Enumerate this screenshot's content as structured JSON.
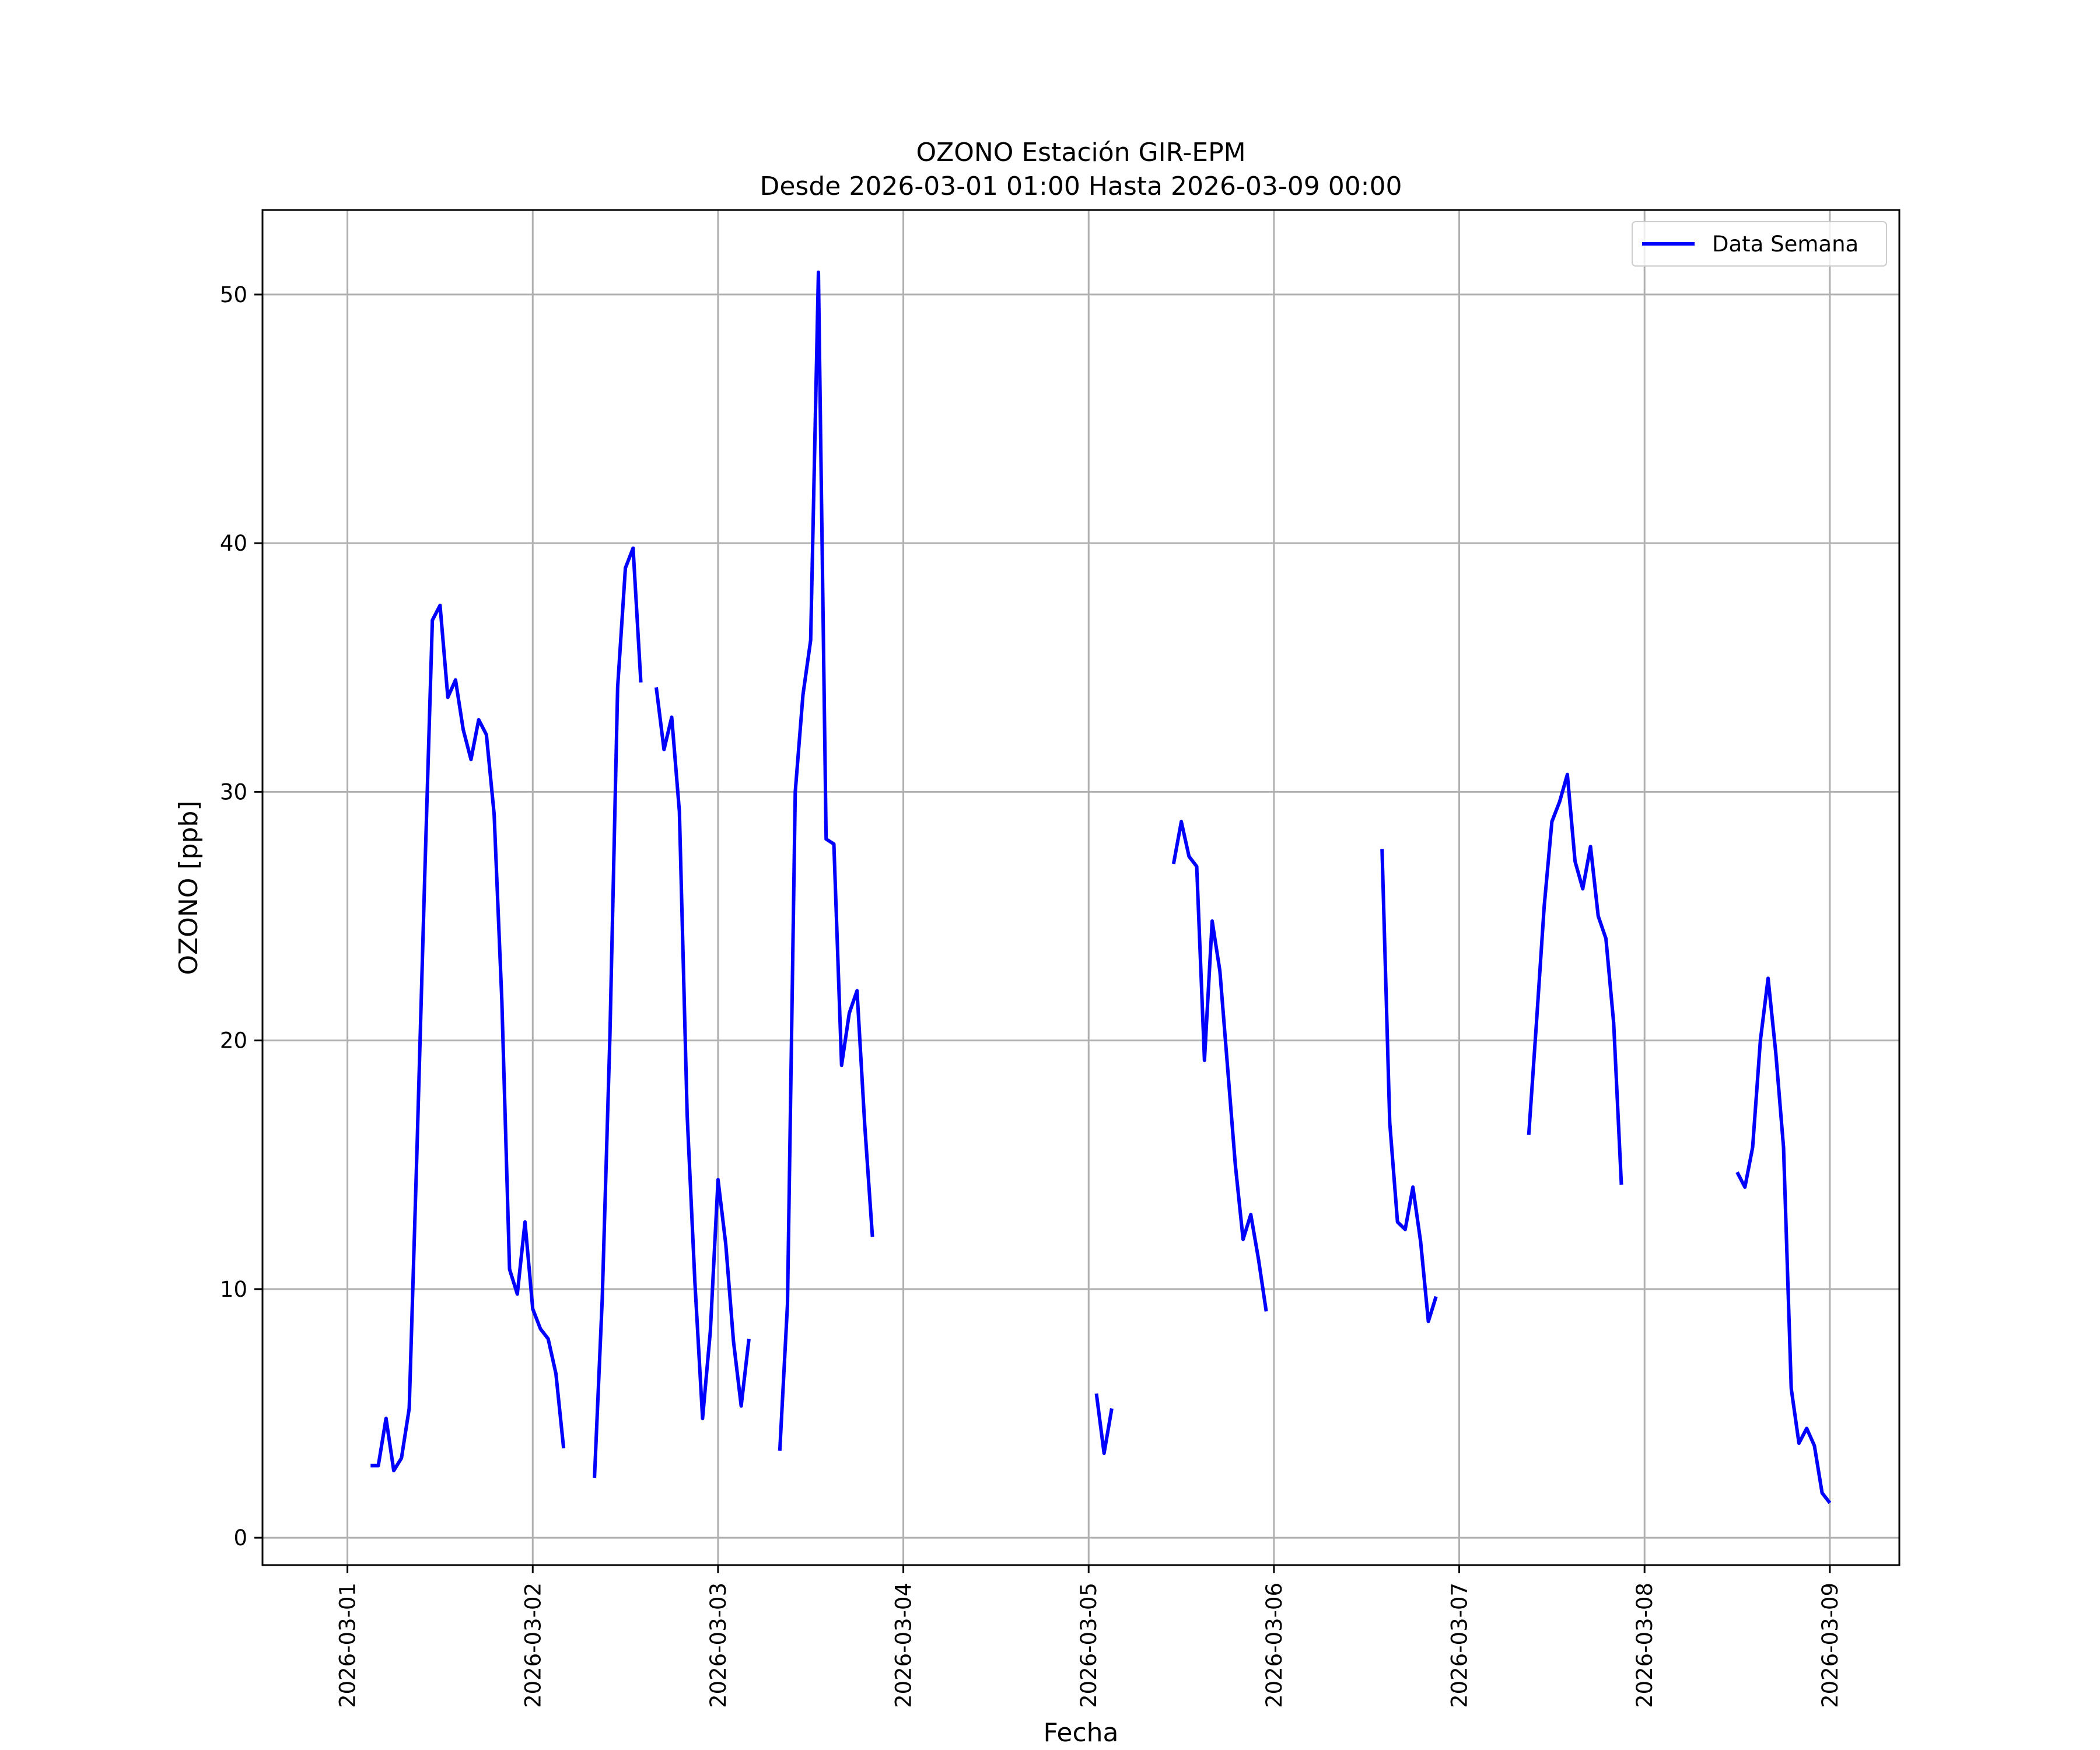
{
  "chart_data": {
    "type": "line",
    "title": "OZONO Estación GIR-EPM",
    "subtitle": "Desde 2026-03-01 01:00 Hasta 2026-03-09 00:00",
    "xlabel": "Fecha",
    "ylabel": "OZONO [ppb]",
    "xlim": [
      "2026-02-28 13:00",
      "2026-03-09 09:00"
    ],
    "ylim": [
      -1.1,
      53.4
    ],
    "yticks": [
      0,
      10,
      20,
      30,
      40,
      50
    ],
    "xticks": [
      "2026-03-01",
      "2026-03-02",
      "2026-03-03",
      "2026-03-04",
      "2026-03-05",
      "2026-03-06",
      "2026-03-07",
      "2026-03-08",
      "2026-03-09"
    ],
    "grid": true,
    "legend_position": "top-right",
    "colors": {
      "line": "#0000ff",
      "grid": "#b0b0b0"
    },
    "series": [
      {
        "name": "Data Semana",
        "points": [
          [
            "2026-03-01 03:00",
            2.9
          ],
          [
            "2026-03-01 04:00",
            2.9
          ],
          [
            "2026-03-01 05:00",
            4.8
          ],
          [
            "2026-03-01 06:00",
            2.7
          ],
          [
            "2026-03-01 07:00",
            3.2
          ],
          [
            "2026-03-01 08:00",
            5.2
          ],
          [
            "2026-03-01 09:00",
            15.5
          ],
          [
            "2026-03-01 10:00",
            26.5
          ],
          [
            "2026-03-01 11:00",
            36.9
          ],
          [
            "2026-03-01 12:00",
            37.5
          ],
          [
            "2026-03-01 13:00",
            33.8
          ],
          [
            "2026-03-01 14:00",
            34.5
          ],
          [
            "2026-03-01 15:00",
            32.5
          ],
          [
            "2026-03-01 16:00",
            31.3
          ],
          [
            "2026-03-01 17:00",
            32.9
          ],
          [
            "2026-03-01 18:00",
            32.3
          ],
          [
            "2026-03-01 19:00",
            29.1
          ],
          [
            "2026-03-01 20:00",
            21.6
          ],
          [
            "2026-03-01 21:00",
            10.8
          ],
          [
            "2026-03-01 22:00",
            9.8
          ],
          [
            "2026-03-01 23:00",
            12.7
          ],
          [
            "2026-03-02 00:00",
            9.2
          ],
          [
            "2026-03-02 01:00",
            8.4
          ],
          [
            "2026-03-02 02:00",
            8.0
          ],
          [
            "2026-03-02 03:00",
            6.6
          ],
          [
            "2026-03-02 04:00",
            3.6
          ],
          null,
          [
            "2026-03-02 08:00",
            2.4
          ],
          [
            "2026-03-02 09:00",
            9.6
          ],
          [
            "2026-03-02 10:00",
            20.2
          ],
          [
            "2026-03-02 11:00",
            34.2
          ],
          [
            "2026-03-02 12:00",
            39.0
          ],
          [
            "2026-03-02 13:00",
            39.8
          ],
          [
            "2026-03-02 14:00",
            34.4
          ],
          null,
          [
            "2026-03-02 16:00",
            34.2
          ],
          [
            "2026-03-02 17:00",
            31.7
          ],
          [
            "2026-03-02 18:00",
            33.0
          ],
          [
            "2026-03-02 19:00",
            29.2
          ],
          [
            "2026-03-02 20:00",
            17.0
          ],
          [
            "2026-03-02 21:00",
            10.3
          ],
          [
            "2026-03-02 22:00",
            4.8
          ],
          [
            "2026-03-02 23:00",
            8.3
          ],
          [
            "2026-03-03 00:00",
            14.4
          ],
          [
            "2026-03-03 01:00",
            11.8
          ],
          [
            "2026-03-03 02:00",
            7.9
          ],
          [
            "2026-03-03 03:00",
            5.3
          ],
          [
            "2026-03-03 04:00",
            8.0
          ],
          null,
          [
            "2026-03-03 08:00",
            3.5
          ],
          [
            "2026-03-03 09:00",
            9.4
          ],
          [
            "2026-03-03 10:00",
            30.0
          ],
          [
            "2026-03-03 11:00",
            33.9
          ],
          [
            "2026-03-03 12:00",
            36.1
          ],
          [
            "2026-03-03 13:00",
            50.9
          ],
          [
            "2026-03-03 14:00",
            28.1
          ],
          [
            "2026-03-03 15:00",
            27.9
          ],
          [
            "2026-03-03 16:00",
            19.0
          ],
          [
            "2026-03-03 17:00",
            21.1
          ],
          [
            "2026-03-03 18:00",
            22.0
          ],
          [
            "2026-03-03 19:00",
            16.6
          ],
          [
            "2026-03-03 20:00",
            12.1
          ],
          null,
          [
            "2026-03-05 01:00",
            5.8
          ],
          [
            "2026-03-05 02:00",
            3.4
          ],
          [
            "2026-03-05 03:00",
            5.2
          ],
          null,
          [
            "2026-03-05 11:00",
            27.1
          ],
          [
            "2026-03-05 12:00",
            28.8
          ],
          [
            "2026-03-05 13:00",
            27.4
          ],
          [
            "2026-03-05 14:00",
            27.0
          ],
          [
            "2026-03-05 15:00",
            19.2
          ],
          [
            "2026-03-05 16:00",
            24.8
          ],
          [
            "2026-03-05 17:00",
            22.8
          ],
          [
            "2026-03-05 18:00",
            18.9
          ],
          [
            "2026-03-05 19:00",
            15.0
          ],
          [
            "2026-03-05 20:00",
            12.0
          ],
          [
            "2026-03-05 21:00",
            13.0
          ],
          [
            "2026-03-05 22:00",
            11.2
          ],
          [
            "2026-03-05 23:00",
            9.1
          ],
          null,
          [
            "2026-03-06 14:00",
            27.7
          ],
          [
            "2026-03-06 15:00",
            16.7
          ],
          [
            "2026-03-06 16:00",
            12.7
          ],
          [
            "2026-03-06 17:00",
            12.4
          ],
          [
            "2026-03-06 18:00",
            14.1
          ],
          [
            "2026-03-06 19:00",
            11.9
          ],
          [
            "2026-03-06 20:00",
            8.7
          ],
          [
            "2026-03-06 21:00",
            9.7
          ],
          null,
          [
            "2026-03-07 09:00",
            16.2
          ],
          [
            "2026-03-07 10:00",
            20.7
          ],
          [
            "2026-03-07 11:00",
            25.4
          ],
          [
            "2026-03-07 12:00",
            28.8
          ],
          [
            "2026-03-07 13:00",
            29.6
          ],
          [
            "2026-03-07 14:00",
            30.7
          ],
          [
            "2026-03-07 15:00",
            27.2
          ],
          [
            "2026-03-07 16:00",
            26.1
          ],
          [
            "2026-03-07 17:00",
            27.8
          ],
          [
            "2026-03-07 18:00",
            25.0
          ],
          [
            "2026-03-07 19:00",
            24.1
          ],
          [
            "2026-03-07 20:00",
            20.7
          ],
          [
            "2026-03-07 21:00",
            14.2
          ],
          null,
          [
            "2026-03-08 12:00",
            14.7
          ],
          [
            "2026-03-08 13:00",
            14.1
          ],
          [
            "2026-03-08 14:00",
            15.7
          ],
          [
            "2026-03-08 15:00",
            20.0
          ],
          [
            "2026-03-08 16:00",
            22.5
          ],
          [
            "2026-03-08 17:00",
            19.5
          ],
          [
            "2026-03-08 18:00",
            15.7
          ],
          [
            "2026-03-08 19:00",
            6.0
          ],
          [
            "2026-03-08 20:00",
            3.8
          ],
          [
            "2026-03-08 21:00",
            4.4
          ],
          [
            "2026-03-08 22:00",
            3.7
          ],
          [
            "2026-03-08 23:00",
            1.8
          ],
          [
            "2026-03-09 00:00",
            1.4
          ]
        ]
      }
    ]
  }
}
